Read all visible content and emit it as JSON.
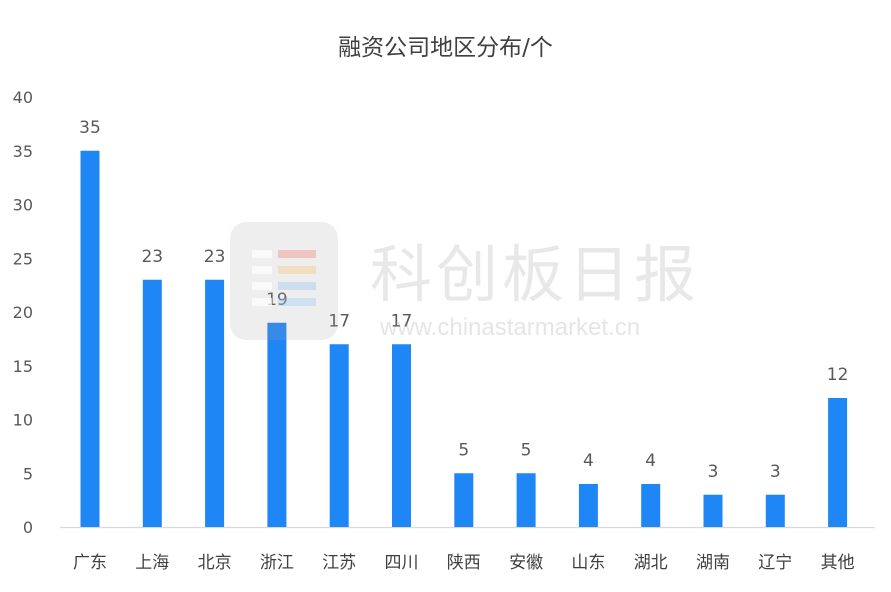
{
  "chart_data": {
    "type": "bar",
    "title": "融资公司地区分布/个",
    "categories": [
      "广东",
      "上海",
      "北京",
      "浙江",
      "江苏",
      "四川",
      "陕西",
      "安徽",
      "山东",
      "湖北",
      "湖南",
      "辽宁",
      "其他"
    ],
    "values": [
      35,
      23,
      23,
      19,
      17,
      17,
      5,
      5,
      4,
      4,
      3,
      3,
      12
    ],
    "yticks": [
      0,
      5,
      10,
      15,
      20,
      25,
      30,
      35,
      40
    ],
    "ylim": [
      0,
      40
    ],
    "grid": false,
    "bar_color": "#1f86f5",
    "data_labels": true
  },
  "watermark": {
    "text": "科创板日报",
    "url": "www.chinastarmarket.cn"
  }
}
